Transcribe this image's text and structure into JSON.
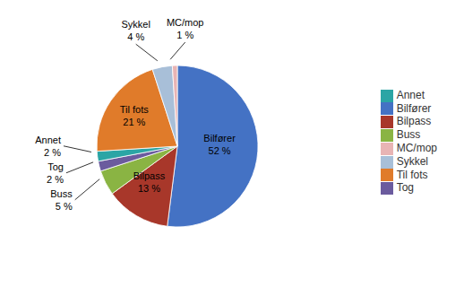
{
  "chart_data": {
    "type": "pie",
    "categories": [
      "Bilfører",
      "Bilpass",
      "Buss",
      "Tog",
      "Annet",
      "Til fots",
      "Sykkel",
      "MC/mop"
    ],
    "values": [
      52,
      13,
      5,
      2,
      2,
      21,
      4,
      1
    ],
    "value_labels": [
      "52 %",
      "13 %",
      "5 %",
      "2 %",
      "2 %",
      "21 %",
      "4 %",
      "1 %"
    ],
    "colors": [
      "#4472C4",
      "#A8372A",
      "#8AB443",
      "#6B5B9E",
      "#2BA5A5",
      "#E07B2A",
      "#A8BFD8",
      "#E8B4B4"
    ],
    "data_labels": true,
    "legend": "right"
  }
}
